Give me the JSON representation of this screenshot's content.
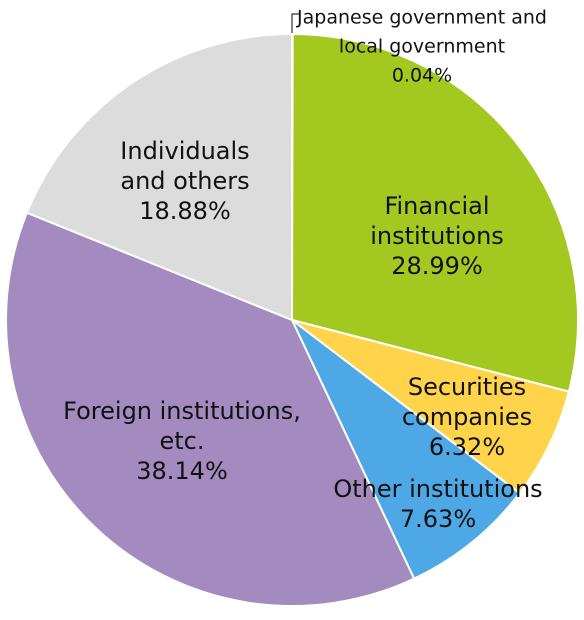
{
  "chart_data": {
    "type": "pie",
    "categories": [
      [
        "Japanese government and",
        "local government"
      ],
      [
        "Financial",
        "institutions"
      ],
      [
        "Securities",
        "companies"
      ],
      [
        "Other institutions"
      ],
      [
        "Foreign institutions,",
        "etc."
      ],
      [
        "Individuals",
        "and others"
      ]
    ],
    "values": [
      0.04,
      28.99,
      6.32,
      7.63,
      38.14,
      18.88
    ],
    "value_labels": [
      "0.04%",
      "28.99%",
      "6.32%",
      "7.63%",
      "38.14%",
      "18.88%"
    ],
    "colors": [
      "#a3c81f",
      "#a3c81f",
      "#ffd44a",
      "#4fa8e6",
      "#a48bbf",
      "#dcdcdc"
    ]
  }
}
